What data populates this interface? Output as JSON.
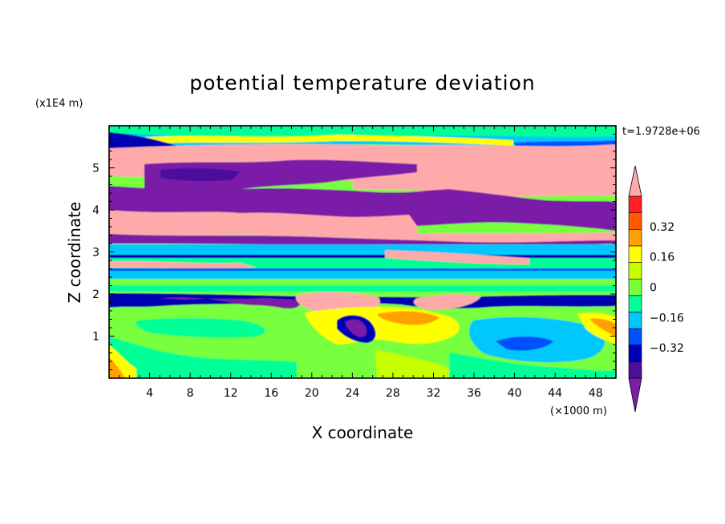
{
  "chart_data": {
    "type": "heatmap",
    "title": "potential temperature deviation",
    "xlabel": "X coordinate",
    "ylabel": "Z coordinate",
    "x_unit": "(×1000 m)",
    "y_unit": "(x1E4 m)",
    "time_label": "t=1.9728e+06",
    "xlim": [
      0,
      50
    ],
    "ylim": [
      0,
      6
    ],
    "x_ticks": [
      "4",
      "8",
      "12",
      "16",
      "20",
      "24",
      "28",
      "32",
      "36",
      "40",
      "44",
      "48"
    ],
    "y_ticks": [
      "1",
      "2",
      "3",
      "4",
      "5"
    ],
    "colorbar": {
      "levels": [
        -0.48,
        -0.4,
        -0.32,
        -0.24,
        -0.16,
        -0.08,
        0,
        0.08,
        0.16,
        0.24,
        0.32,
        0.4
      ],
      "tick_labels": [
        "0.32",
        "0.16",
        "0",
        "−0.16",
        "−0.32"
      ],
      "tick_values": [
        0.32,
        0.16,
        0,
        -0.16,
        -0.32
      ],
      "colors": [
        "#7a1fa8",
        "#4b0f9c",
        "#0000b3",
        "#0050ff",
        "#00c8ff",
        "#00ff96",
        "#78ff3c",
        "#c8ff00",
        "#ffff00",
        "#ffa000",
        "#ff5a00",
        "#ff2020",
        "#ffaaaa"
      ],
      "extend": "both"
    }
  }
}
